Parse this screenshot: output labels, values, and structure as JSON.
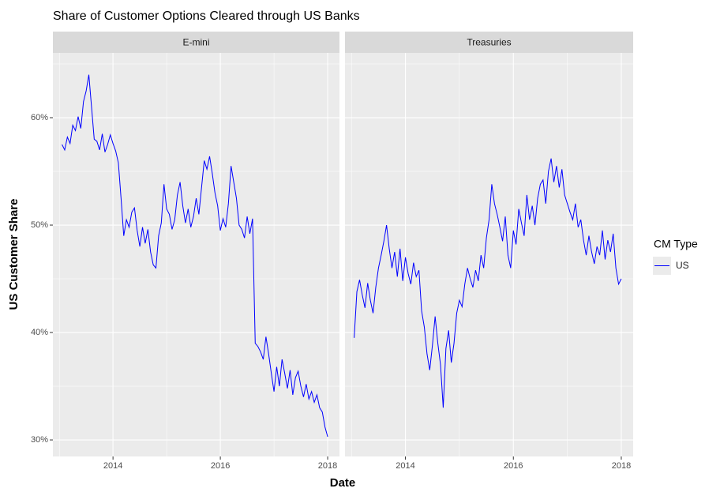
{
  "chart_data": {
    "type": "line",
    "title": "Share of Customer Options Cleared through US Banks",
    "x_label": "Date",
    "y_label": "US Customer Share",
    "legend_title": "CM Type",
    "series_name": "US",
    "color": "#0000ff",
    "grid": true,
    "legend_position": "right",
    "xlim": [
      2012.88,
      2018.22
    ],
    "xticks": [
      2014,
      2016,
      2018
    ],
    "minor_xticks": [
      2013,
      2015,
      2017
    ],
    "ylim": [
      28.46,
      66.03
    ],
    "yticks": [
      {
        "value": 30,
        "label": "30%"
      },
      {
        "value": 40,
        "label": "40%"
      },
      {
        "value": 50,
        "label": "50%"
      },
      {
        "value": 60,
        "label": "60%"
      }
    ],
    "minor_yticks": [
      35,
      45,
      55,
      65
    ],
    "x": [
      2013.05,
      2013.1,
      2013.15,
      2013.2,
      2013.25,
      2013.3,
      2013.35,
      2013.4,
      2013.45,
      2013.5,
      2013.55,
      2013.6,
      2013.65,
      2013.7,
      2013.75,
      2013.8,
      2013.85,
      2013.9,
      2013.95,
      2014.0,
      2014.05,
      2014.1,
      2014.15,
      2014.2,
      2014.25,
      2014.3,
      2014.35,
      2014.4,
      2014.45,
      2014.5,
      2014.55,
      2014.6,
      2014.65,
      2014.7,
      2014.75,
      2014.8,
      2014.85,
      2014.9,
      2014.95,
      2015.0,
      2015.05,
      2015.1,
      2015.15,
      2015.2,
      2015.25,
      2015.3,
      2015.35,
      2015.4,
      2015.45,
      2015.5,
      2015.55,
      2015.6,
      2015.65,
      2015.7,
      2015.75,
      2015.8,
      2015.85,
      2015.9,
      2015.95,
      2016.0,
      2016.05,
      2016.1,
      2016.15,
      2016.2,
      2016.25,
      2016.3,
      2016.35,
      2016.4,
      2016.45,
      2016.5,
      2016.55,
      2016.6,
      2016.65,
      2016.7,
      2016.75,
      2016.8,
      2016.85,
      2016.9,
      2016.95,
      2017.0,
      2017.05,
      2017.1,
      2017.15,
      2017.2,
      2017.25,
      2017.3,
      2017.35,
      2017.4,
      2017.45,
      2017.5,
      2017.55,
      2017.6,
      2017.65,
      2017.7,
      2017.75,
      2017.8,
      2017.85,
      2017.9,
      2017.95,
      2018.0
    ],
    "panels": [
      {
        "title": "E-mini",
        "values": [
          57.5,
          57.0,
          58.2,
          57.6,
          59.3,
          58.8,
          60.1,
          59.0,
          61.5,
          62.5,
          64.0,
          61.0,
          58.0,
          57.8,
          57.0,
          58.5,
          56.8,
          57.5,
          58.4,
          57.6,
          56.9,
          55.8,
          52.5,
          49.0,
          50.5,
          49.8,
          51.2,
          51.6,
          49.5,
          48.0,
          49.8,
          48.3,
          49.6,
          47.5,
          46.3,
          46.0,
          49.0,
          50.2,
          53.8,
          51.5,
          51.0,
          49.6,
          50.5,
          52.8,
          54.0,
          51.8,
          50.2,
          51.5,
          49.8,
          50.8,
          52.5,
          51.0,
          53.5,
          56.0,
          55.2,
          56.4,
          54.8,
          53.0,
          51.8,
          49.5,
          50.6,
          49.8,
          52.0,
          55.5,
          54.0,
          52.5,
          50.0,
          49.6,
          48.8,
          50.8,
          49.2,
          50.6,
          39.0,
          38.7,
          38.2,
          37.5,
          39.6,
          38.0,
          36.2,
          34.5,
          36.8,
          35.0,
          37.5,
          36.2,
          34.8,
          36.5,
          34.2,
          35.8,
          36.4,
          35.0,
          34.0,
          35.2,
          33.8,
          34.5,
          33.5,
          34.2,
          33.0,
          32.6,
          31.2,
          30.3
        ]
      },
      {
        "title": "Treasuries",
        "values": [
          39.5,
          43.8,
          44.9,
          43.5,
          42.3,
          44.6,
          43.0,
          41.8,
          44.2,
          46.0,
          47.2,
          48.5,
          50.0,
          47.8,
          46.0,
          47.5,
          45.2,
          47.8,
          44.8,
          47.0,
          45.5,
          44.5,
          46.5,
          45.2,
          45.8,
          42.0,
          40.5,
          38.0,
          36.5,
          38.8,
          41.5,
          39.0,
          37.0,
          33.0,
          38.5,
          40.2,
          37.2,
          39.0,
          41.8,
          43.0,
          42.4,
          44.5,
          46.0,
          45.0,
          44.2,
          45.8,
          44.8,
          47.2,
          46.0,
          48.8,
          50.5,
          53.8,
          52.0,
          51.0,
          49.8,
          48.5,
          50.8,
          47.2,
          46.0,
          49.5,
          48.2,
          51.5,
          50.2,
          49.0,
          52.8,
          50.5,
          51.8,
          50.0,
          52.5,
          53.8,
          54.2,
          52.0,
          55.0,
          56.2,
          54.0,
          55.5,
          53.5,
          55.2,
          52.8,
          52.0,
          51.2,
          50.5,
          52.0,
          49.8,
          50.5,
          48.6,
          47.2,
          49.0,
          47.5,
          46.4,
          48.0,
          47.2,
          49.5,
          46.8,
          48.6,
          47.5,
          49.2,
          46.0,
          44.5,
          45.0
        ]
      }
    ]
  }
}
